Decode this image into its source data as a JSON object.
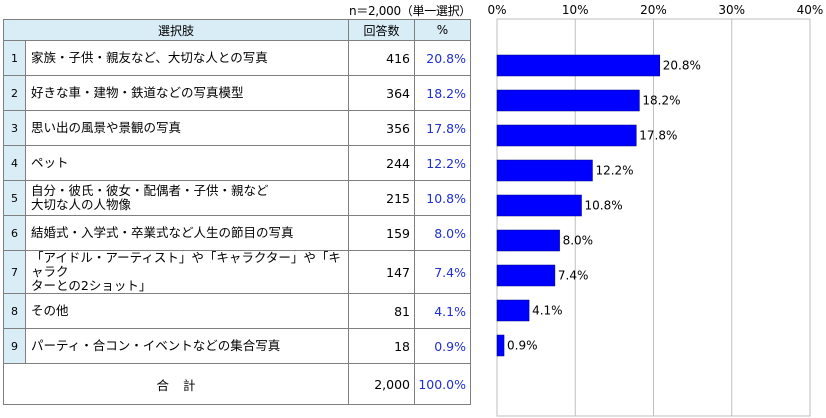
{
  "sample_note": "n＝2,000（単一選択）",
  "table": {
    "headers": {
      "choice": "選択肢",
      "count": "回答数",
      "pct": "%"
    },
    "rows": [
      {
        "no": "1",
        "lines": [
          "家族・子供・親友など、大切な人との写真"
        ],
        "count": "416",
        "pct": "20.8%"
      },
      {
        "no": "2",
        "lines": [
          "好きな車・建物・鉄道などの写真模型"
        ],
        "count": "364",
        "pct": "18.2%"
      },
      {
        "no": "3",
        "lines": [
          "思い出の風景や景観の写真"
        ],
        "count": "356",
        "pct": "17.8%"
      },
      {
        "no": "4",
        "lines": [
          "ペット"
        ],
        "count": "244",
        "pct": "12.2%"
      },
      {
        "no": "5",
        "lines": [
          "自分・彼氏・彼女・配偶者・子供・親など",
          "大切な人の人物像"
        ],
        "count": "215",
        "pct": "10.8%"
      },
      {
        "no": "6",
        "lines": [
          "結婚式・入学式・卒業式など人生の節目の写真"
        ],
        "count": "159",
        "pct": "8.0%"
      },
      {
        "no": "7",
        "lines": [
          "「アイドル・アーティスト」や「キャラクター」や「キャラク",
          "ターとの2ショット」"
        ],
        "count": "147",
        "pct": "7.4%"
      },
      {
        "no": "8",
        "lines": [
          "その他"
        ],
        "count": "81",
        "pct": "4.1%"
      },
      {
        "no": "9",
        "lines": [
          "パーティ・合コン・イベントなどの集合写真"
        ],
        "count": "18",
        "pct": "0.9%"
      }
    ],
    "total": {
      "label": "合計",
      "count": "2,000",
      "pct": "100.0%"
    }
  },
  "chart_data": {
    "type": "bar",
    "orientation": "horizontal",
    "categories": [
      "1",
      "2",
      "3",
      "4",
      "5",
      "6",
      "7",
      "8",
      "9"
    ],
    "values": [
      20.8,
      18.2,
      17.8,
      12.2,
      10.8,
      8.0,
      7.4,
      4.1,
      0.9
    ],
    "value_labels": [
      "20.8%",
      "18.2%",
      "17.8%",
      "12.2%",
      "10.8%",
      "8.0%",
      "7.4%",
      "4.1%",
      "0.9%"
    ],
    "xlim": [
      0,
      40
    ],
    "x_ticks": [
      0,
      10,
      20,
      30,
      40
    ],
    "x_tick_labels": [
      "0%",
      "10%",
      "20%",
      "30%",
      "40%"
    ],
    "grid": true,
    "bar_color": "#0000ff"
  }
}
